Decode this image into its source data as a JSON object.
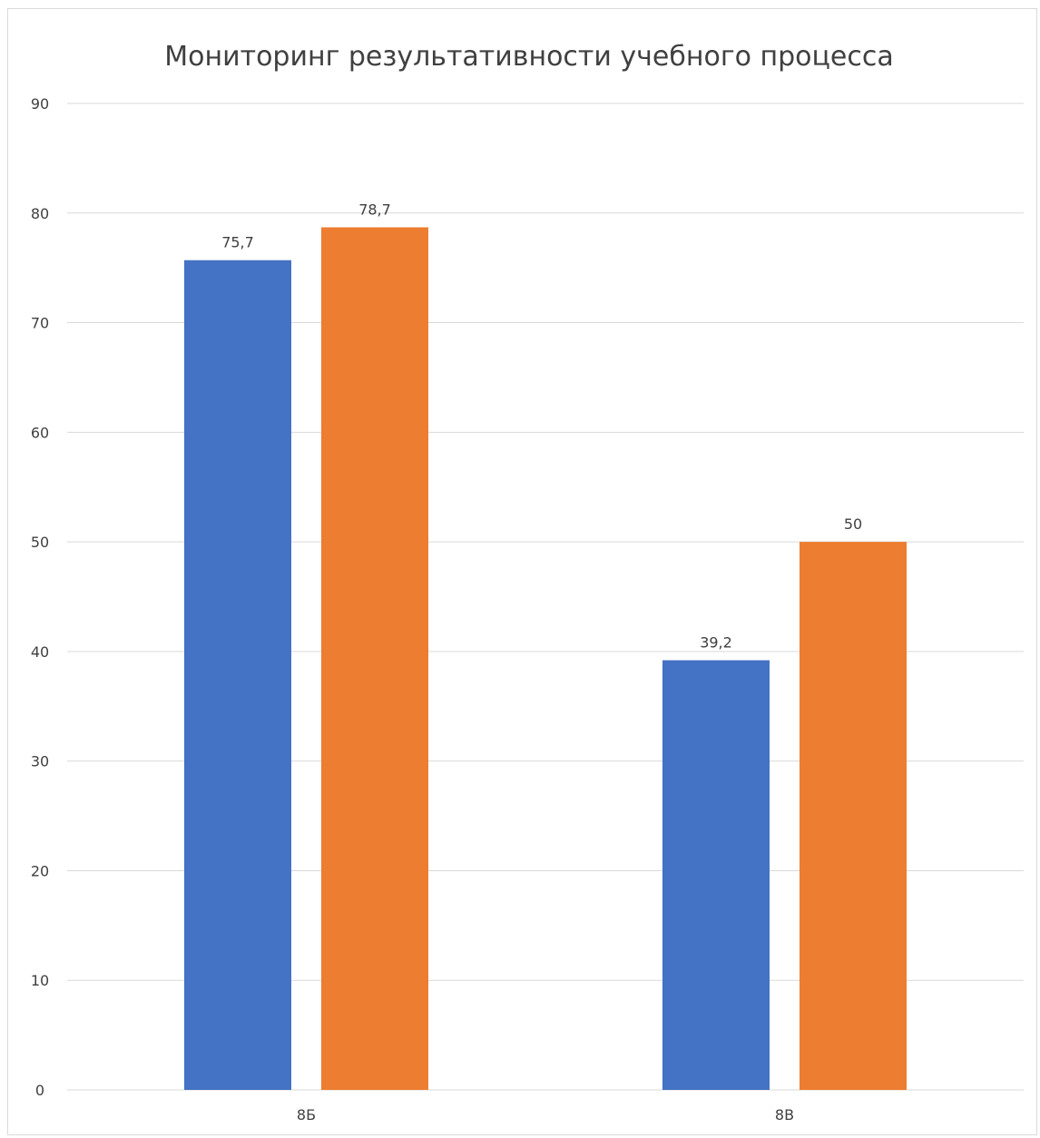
{
  "chart_data": {
    "type": "bar",
    "title": "Мониторинг результативности учебного процесса",
    "categories": [
      "8Б",
      "8В"
    ],
    "series": [
      {
        "values": [
          75.7,
          39.2
        ],
        "color": "#4472c4"
      },
      {
        "values": [
          78.7,
          50
        ],
        "color": "#ed7d31"
      }
    ],
    "data_labels": [
      [
        "75,7",
        "39,2"
      ],
      [
        "78,7",
        "50"
      ]
    ],
    "ylim": [
      0,
      90
    ],
    "y_ticks": [
      0,
      10,
      20,
      30,
      40,
      50,
      60,
      70,
      80,
      90
    ],
    "grid": true,
    "legend": "none"
  }
}
